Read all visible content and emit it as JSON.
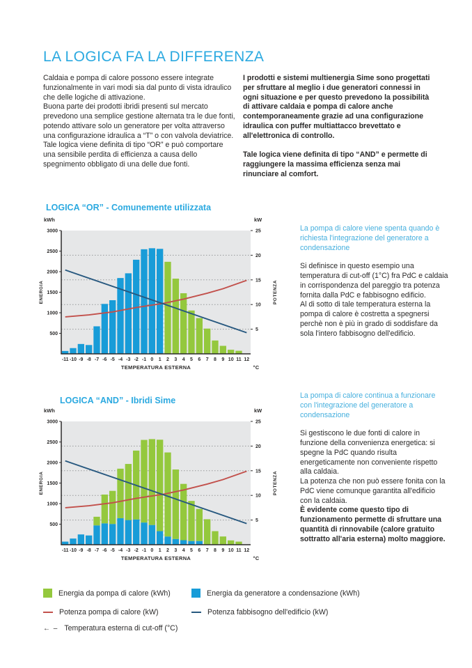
{
  "page": {
    "title": "LA LOGICA FA LA DIFFERENZA",
    "accent_color": "#2BA9E0"
  },
  "intro": {
    "left": "Caldaia e pompa di calore possono essere integrate funzionalmente in vari modi sia dal punto di vista idraulico che delle logiche di attivazione.\nBuona parte dei prodotti ibridi presenti sul mercato prevedono una semplice gestione alternata tra le due fonti, potendo attivare solo un generatore per volta attraverso una configurazione idraulica a “T” o con valvola deviatrice.\nTale logica viene definita di tipo “OR” e può comportare una sensibile perdita di efficienza a causa dello spegnimento obbligato di una delle due fonti.",
    "right": "I prodotti e sistemi multienergia Sime sono progettati per sfruttare al meglio i due generatori connessi in ogni situazione e per questo prevedono la possibilità di attivare caldaia e pompa di calore anche contemporaneamente grazie ad una configurazione idraulica con puffer multiattacco brevettato e all'elettronica di controllo.\n\nTale logica viene definita di tipo “AND” e permette di raggiungere la massima efficienza senza mai rinunciare al comfort."
  },
  "notes": [
    {
      "heading": "La pompa di calore viene spenta quando è richiesta l'integrazione del generatore a condensazione",
      "body": "Si definisce in questo esempio una temperatura di cut-off (1°C) fra PdC e caldaia in corrispondenza del pareggio tra potenza fornita dalla PdC e fabbisogno edificio.\nAl di sotto di tale temperatura esterna la pompa di calore è costretta a spegnersi perchè non è più in grado di soddisfare da sola l'intero fabbisogno dell'edificio."
    },
    {
      "heading": "La pompa di calore continua a funzionare con l'integrazione del generatore a condensazione",
      "body": "Si gestiscono le due fonti di calore in funzione della convenienza energetica: si spegne la PdC quando risulta energeticamente non conveniente rispetto alla caldaia.\nLa potenza che non può essere fonita con la PdC viene comunque garantita all'edificio con la caldaia.",
      "body_bold": "È evidente come questo tipo di funzionamento permette di sfruttare una quantità di rinnovabile (calore gratuito sottratto all'aria esterna) molto maggiore."
    }
  ],
  "legend": {
    "items": [
      {
        "label": "Energia da pompa di calore (kWh)",
        "swatch": "square",
        "color": "#94C83D"
      },
      {
        "label": "Energia da generatore a condensazione (kWh)",
        "swatch": "square",
        "color": "#189CD8"
      },
      {
        "label": "Potenza pompa di calore (kW)",
        "swatch": "line",
        "color": "#C2504B"
      },
      {
        "label": "Potenza fabbisogno dell'edificio (kW)",
        "swatch": "line",
        "color": "#27587F"
      },
      {
        "label": "Temperatura esterna di cut-off (°C)",
        "swatch": "cutoff",
        "glyph": "← –",
        "color": "#2b2a2a"
      }
    ]
  },
  "chart_data": [
    {
      "type": "bar+line",
      "title": "LOGICA “OR” - Comunemente utilizzata",
      "xlabel": "TEMPERATURA ESTERNA",
      "x_unit": "°C",
      "x": [
        -11,
        -10,
        -9,
        -8,
        -7,
        -6,
        -5,
        -4,
        -3,
        -2,
        -1,
        0,
        1,
        2,
        3,
        4,
        5,
        6,
        7,
        8,
        9,
        10,
        11,
        12
      ],
      "x_ticks": [
        "-11",
        "-10",
        "-9",
        "-8",
        "-7",
        "-6",
        "-5",
        "-4",
        "-3",
        "-2",
        "-1",
        "0",
        "1",
        "2",
        "3",
        "4",
        "5",
        "6",
        "7",
        "8",
        "9",
        "10",
        "11",
        "12"
      ],
      "left_axis": {
        "unit": "kWh",
        "label": "ENERGIA",
        "max": 3000,
        "ticks": [
          3000,
          2500,
          2000,
          1500,
          1000,
          500
        ]
      },
      "right_axis": {
        "unit": "kW",
        "label": "POTENZA",
        "max": 25,
        "ticks": [
          25,
          20,
          15,
          10,
          5
        ],
        "grid": [
          20,
          15,
          10,
          5
        ]
      },
      "bars": [
        {
          "name": "Energia da generatore a condensazione (kWh)",
          "color": "#189CD8",
          "values": [
            70,
            140,
            240,
            215,
            670,
            1215,
            1305,
            1845,
            1960,
            2290,
            2545,
            2570,
            2555,
            0,
            0,
            0,
            0,
            0,
            0,
            0,
            0,
            0,
            0,
            0
          ]
        },
        {
          "name": "Energia da pompa di calore (kWh)",
          "color": "#94C83D",
          "values": [
            0,
            0,
            0,
            0,
            0,
            0,
            0,
            0,
            0,
            0,
            0,
            0,
            0,
            2240,
            1830,
            1475,
            1055,
            870,
            615,
            325,
            195,
            100,
            75,
            0
          ]
        }
      ],
      "lines": [
        {
          "name": "Potenza pompa di calore (kW)",
          "color": "#C2504B",
          "axis": "right",
          "points": [
            [
              -11,
              7.5
            ],
            [
              -8,
              7.9
            ],
            [
              -5,
              8.5
            ],
            [
              -2,
              9.4
            ],
            [
              1.5,
              10.25
            ],
            [
              4,
              11.1
            ],
            [
              7,
              12.3
            ],
            [
              9,
              13.2
            ],
            [
              12,
              14.9
            ]
          ]
        },
        {
          "name": "Potenza fabbisogno dell'edificio (kW)",
          "color": "#27587F",
          "axis": "right",
          "points": [
            [
              -11,
              17
            ],
            [
              12,
              4.3
            ]
          ]
        }
      ],
      "cutoff": {
        "x": 1.5,
        "kw": 10.25
      }
    },
    {
      "type": "bar+line",
      "title": "LOGICA “AND” - Ibridi Sime",
      "xlabel": "TEMPERATURA ESTERNA",
      "x_unit": "°C",
      "x": [
        -11,
        -10,
        -9,
        -8,
        -7,
        -6,
        -5,
        -4,
        -3,
        -2,
        -1,
        0,
        1,
        2,
        3,
        4,
        5,
        6,
        7,
        8,
        9,
        10,
        11,
        12
      ],
      "x_ticks": [
        "-11",
        "-10",
        "-9",
        "-8",
        "-7",
        "-6",
        "-5",
        "-4",
        "-3",
        "-2",
        "-1",
        "0",
        "1",
        "2",
        "3",
        "4",
        "5",
        "6",
        "7",
        "8",
        "9",
        "10",
        "11",
        "12"
      ],
      "left_axis": {
        "unit": "kWh",
        "label": "ENERGIA",
        "max": 3000,
        "ticks": [
          3000,
          2500,
          2000,
          1500,
          1000,
          500
        ]
      },
      "right_axis": {
        "unit": "kW",
        "label": "POTENZA",
        "max": 25,
        "ticks": [
          25,
          20,
          15,
          10,
          5
        ],
        "grid": [
          20,
          15,
          10,
          5
        ]
      },
      "bars": [
        {
          "name": "Energia da generatore a condensazione (kWh)",
          "color": "#189CD8",
          "values": [
            75,
            150,
            250,
            225,
            470,
            520,
            505,
            645,
            600,
            615,
            540,
            480,
            330,
            200,
            140,
            110,
            90,
            90,
            0,
            0,
            0,
            0,
            0,
            0
          ]
        },
        {
          "name": "Energia da pompa di calore (kWh)",
          "color": "#94C83D",
          "values": [
            0,
            0,
            0,
            0,
            210,
            700,
            805,
            1205,
            1365,
            1675,
            2010,
            2090,
            2225,
            2045,
            1690,
            1370,
            975,
            780,
            620,
            330,
            200,
            105,
            75,
            0
          ]
        }
      ],
      "lines": [
        {
          "name": "Potenza pompa di calore (kW)",
          "color": "#C2504B",
          "axis": "right",
          "points": [
            [
              -11,
              7.5
            ],
            [
              -8,
              7.9
            ],
            [
              -5,
              8.5
            ],
            [
              -2,
              9.4
            ],
            [
              1.5,
              10.25
            ],
            [
              4,
              11.1
            ],
            [
              7,
              12.3
            ],
            [
              9,
              13.2
            ],
            [
              12,
              14.9
            ]
          ]
        },
        {
          "name": "Potenza fabbisogno dell'edificio (kW)",
          "color": "#27587F",
          "axis": "right",
          "points": [
            [
              -11,
              17
            ],
            [
              12,
              4.3
            ]
          ]
        }
      ],
      "cutoff": {
        "x": 1.5,
        "kw": 10.25
      }
    }
  ]
}
